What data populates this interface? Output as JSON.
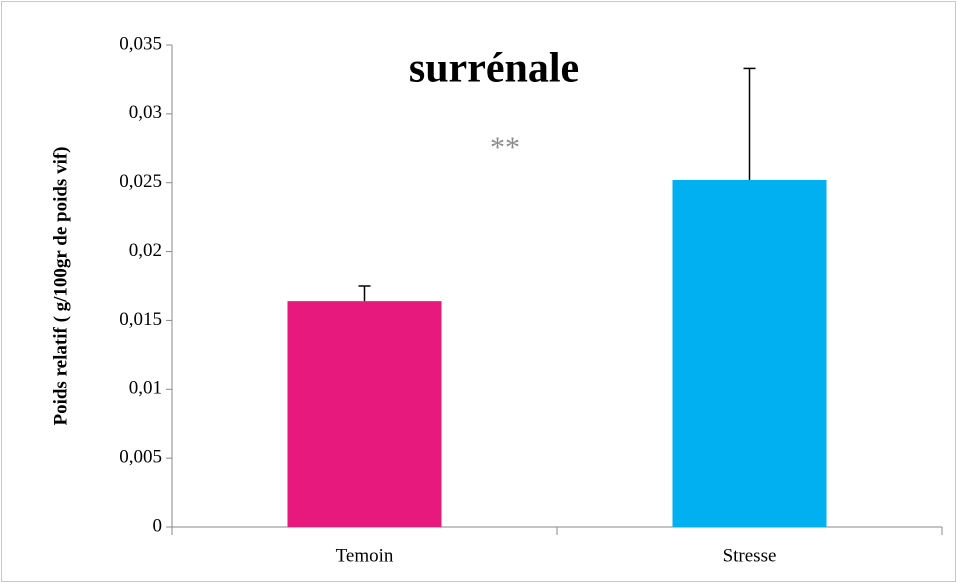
{
  "chart_data": {
    "type": "bar",
    "title": "surrénale",
    "ylabel": "Poids relatif  ( g/100gr de poids vif)",
    "annotation": "**",
    "categories": [
      "Temoin",
      "Stresse"
    ],
    "values": [
      0.0164,
      0.0252
    ],
    "errors": [
      0.0011,
      0.0081
    ],
    "colors": [
      "#e8197d",
      "#00b0f0"
    ],
    "ylim": [
      0,
      0.035
    ],
    "yticks": [
      0,
      {
        "value": 0.005,
        "label": "0,005"
      },
      {
        "value": 0.01,
        "label": "0,01"
      },
      {
        "value": 0.015,
        "label": "0,015"
      },
      {
        "value": 0.02,
        "label": "0,02"
      },
      {
        "value": 0.025,
        "label": "0,025"
      },
      {
        "value": 0.03,
        "label": "0,03"
      },
      {
        "value": 0.035,
        "label": "0,035"
      }
    ]
  }
}
